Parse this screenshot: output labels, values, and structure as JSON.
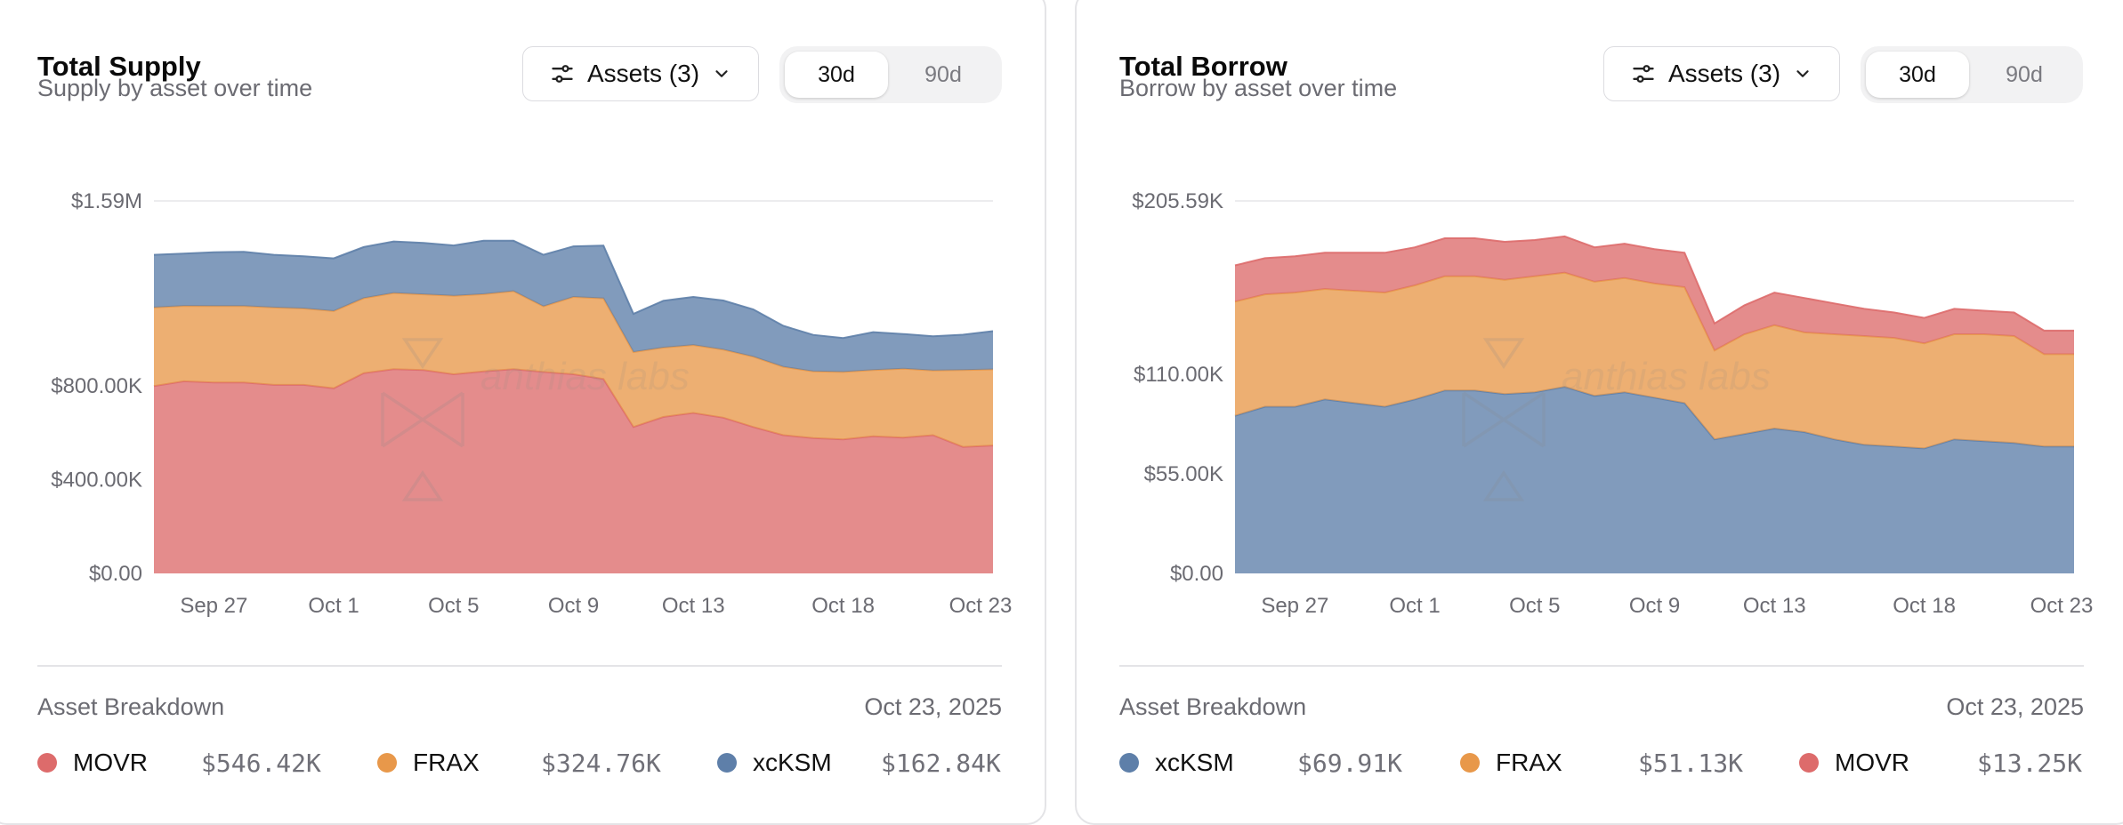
{
  "panels": [
    {
      "title": "Total Supply",
      "subtitle": "Supply by asset over time",
      "filter_label": "Assets (3)",
      "range_options": [
        "30d",
        "90d"
      ],
      "range_selected": "30d",
      "watermark": "anthias labs",
      "breakdown_title": "Asset Breakdown",
      "breakdown_date": "Oct 23, 2025",
      "breakdown": [
        {
          "asset": "MOVR",
          "value": "$546.42K",
          "color": "#dd6b6b"
        },
        {
          "asset": "FRAX",
          "value": "$324.76K",
          "color": "#e8984a"
        },
        {
          "asset": "xcKSM",
          "value": "$162.84K",
          "color": "#5e7fa9"
        }
      ]
    },
    {
      "title": "Total Borrow",
      "subtitle": "Borrow by asset over time",
      "filter_label": "Assets (3)",
      "range_options": [
        "30d",
        "90d"
      ],
      "range_selected": "30d",
      "watermark": "anthias labs",
      "breakdown_title": "Asset Breakdown",
      "breakdown_date": "Oct 23, 2025",
      "breakdown": [
        {
          "asset": "xcKSM",
          "value": "$69.91K",
          "color": "#5e7fa9"
        },
        {
          "asset": "FRAX",
          "value": "$51.13K",
          "color": "#e8984a"
        },
        {
          "asset": "MOVR",
          "value": "$13.25K",
          "color": "#dd6b6b"
        }
      ]
    }
  ],
  "chart_data": [
    {
      "type": "area",
      "stacked": true,
      "title": "Total Supply",
      "subtitle": "Supply by asset over time",
      "x_range": [
        "Sep 25",
        "Oct 23"
      ],
      "x_ticks": [
        {
          "label": "Sep 27",
          "day": 2
        },
        {
          "label": "Oct 1",
          "day": 6
        },
        {
          "label": "Oct 5",
          "day": 10
        },
        {
          "label": "Oct 9",
          "day": 14
        },
        {
          "label": "Oct 13",
          "day": 18
        },
        {
          "label": "Oct 18",
          "day": 23
        },
        {
          "label": "Oct 23",
          "day": 28
        }
      ],
      "y_ticks": [
        {
          "label": "$0.00",
          "value": 0
        },
        {
          "label": "$400.00K",
          "value": 400
        },
        {
          "label": "$800.00K",
          "value": 800
        },
        {
          "label": "$1.59M",
          "value": 1590
        }
      ],
      "ylim": [
        0,
        1590
      ],
      "x_days": [
        0,
        1,
        2,
        3,
        4,
        5,
        6,
        7,
        8,
        9,
        10,
        11,
        12,
        13,
        14,
        15,
        16,
        17,
        18,
        19,
        20,
        21,
        22,
        23,
        24,
        25,
        26,
        27,
        28
      ],
      "series": [
        {
          "name": "MOVR",
          "color": "#dd6b6b",
          "values": [
            800,
            820,
            815,
            815,
            805,
            805,
            790,
            855,
            872,
            868,
            850,
            862,
            872,
            860,
            850,
            830,
            625,
            668,
            685,
            665,
            625,
            590,
            578,
            572,
            585,
            580,
            590,
            540,
            546
          ]
        },
        {
          "name": "FRAX",
          "color": "#e8984a",
          "values": [
            335,
            322,
            326,
            326,
            330,
            326,
            330,
            320,
            325,
            323,
            335,
            330,
            333,
            280,
            330,
            344,
            320,
            296,
            290,
            290,
            300,
            292,
            284,
            288,
            283,
            294,
            276,
            328,
            325
          ]
        },
        {
          "name": "xcKSM",
          "color": "#5e7fa9",
          "values": [
            225,
            223,
            230,
            232,
            225,
            223,
            225,
            218,
            220,
            220,
            215,
            228,
            215,
            220,
            216,
            225,
            163,
            200,
            205,
            210,
            202,
            175,
            156,
            145,
            162,
            148,
            146,
            151,
            163
          ]
        }
      ]
    },
    {
      "type": "area",
      "stacked": true,
      "title": "Total Borrow",
      "subtitle": "Borrow by asset over time",
      "x_range": [
        "Sep 25",
        "Oct 23"
      ],
      "x_ticks": [
        {
          "label": "Sep 27",
          "day": 2
        },
        {
          "label": "Oct 1",
          "day": 6
        },
        {
          "label": "Oct 5",
          "day": 10
        },
        {
          "label": "Oct 9",
          "day": 14
        },
        {
          "label": "Oct 13",
          "day": 18
        },
        {
          "label": "Oct 18",
          "day": 23
        },
        {
          "label": "Oct 23",
          "day": 28
        }
      ],
      "y_ticks": [
        {
          "label": "$0.00",
          "value": 0
        },
        {
          "label": "$55.00K",
          "value": 55
        },
        {
          "label": "$110.00K",
          "value": 110
        },
        {
          "label": "$205.59K",
          "value": 205.59
        }
      ],
      "ylim": [
        0,
        205.59
      ],
      "x_days": [
        0,
        1,
        2,
        3,
        4,
        5,
        6,
        7,
        8,
        9,
        10,
        11,
        12,
        13,
        14,
        15,
        16,
        17,
        18,
        19,
        20,
        21,
        22,
        23,
        24,
        25,
        26,
        27,
        28
      ],
      "series": [
        {
          "name": "xcKSM",
          "color": "#5e7fa9",
          "values": [
            87,
            92,
            92,
            96,
            94,
            92,
            96,
            101,
            101,
            99,
            100,
            103,
            98,
            100,
            97,
            94,
            74,
            77,
            80,
            78,
            74,
            71,
            70,
            69,
            74,
            73,
            72,
            70,
            70
          ]
        },
        {
          "name": "FRAX",
          "color": "#e8984a",
          "values": [
            63,
            62,
            63,
            61,
            62,
            63,
            63,
            63,
            63,
            63,
            64,
            63,
            63,
            63,
            63,
            64,
            49,
            55,
            57,
            55,
            58,
            60,
            60,
            58,
            58,
            59,
            59,
            51,
            51
          ]
        },
        {
          "name": "MOVR",
          "color": "#dd6b6b",
          "values": [
            20,
            20,
            20,
            20,
            21,
            22,
            21,
            21,
            21,
            21,
            20,
            20,
            19,
            19,
            19,
            19,
            15,
            16,
            18,
            19,
            17,
            15,
            14,
            14,
            14,
            13,
            13,
            13,
            13
          ]
        }
      ]
    }
  ]
}
